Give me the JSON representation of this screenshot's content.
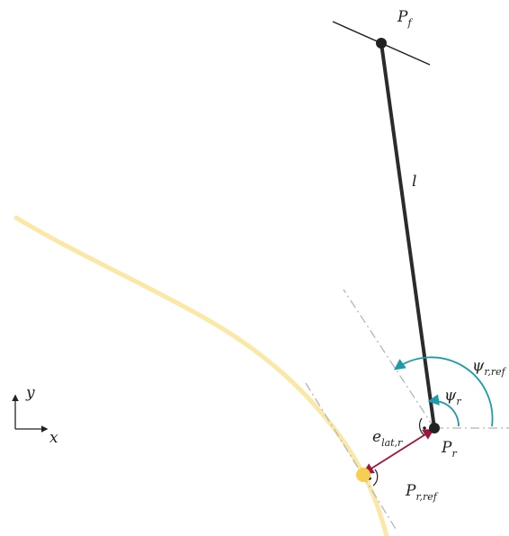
{
  "labels": {
    "front_point": {
      "main": "P",
      "sub": "f"
    },
    "length": {
      "main": "l"
    },
    "rear_point": {
      "main": "P",
      "sub": "r"
    },
    "reference_point": {
      "main": "P",
      "sub": "r,ref"
    },
    "lateral_error": {
      "main": "e",
      "sub": "lat,r"
    },
    "heading_angle": {
      "main": "ψ",
      "sub": "r"
    },
    "reference_heading_angle": {
      "main": "ψ",
      "sub": "r,ref"
    },
    "axis_x": "x",
    "axis_y": "y"
  },
  "colors": {
    "path": "#fbe8a6",
    "rod": "#2b2b2b",
    "points": "#222222",
    "reference_marker": "#f4cf52",
    "angle_arcs": "#1f9aa8",
    "lateral_error": "#a3143a",
    "construction_lines": "#b5b5b5"
  },
  "icons": {
    "right_angle_marker": "dot-in-arc",
    "coordinate_frame": "xy-axes-arrows"
  }
}
